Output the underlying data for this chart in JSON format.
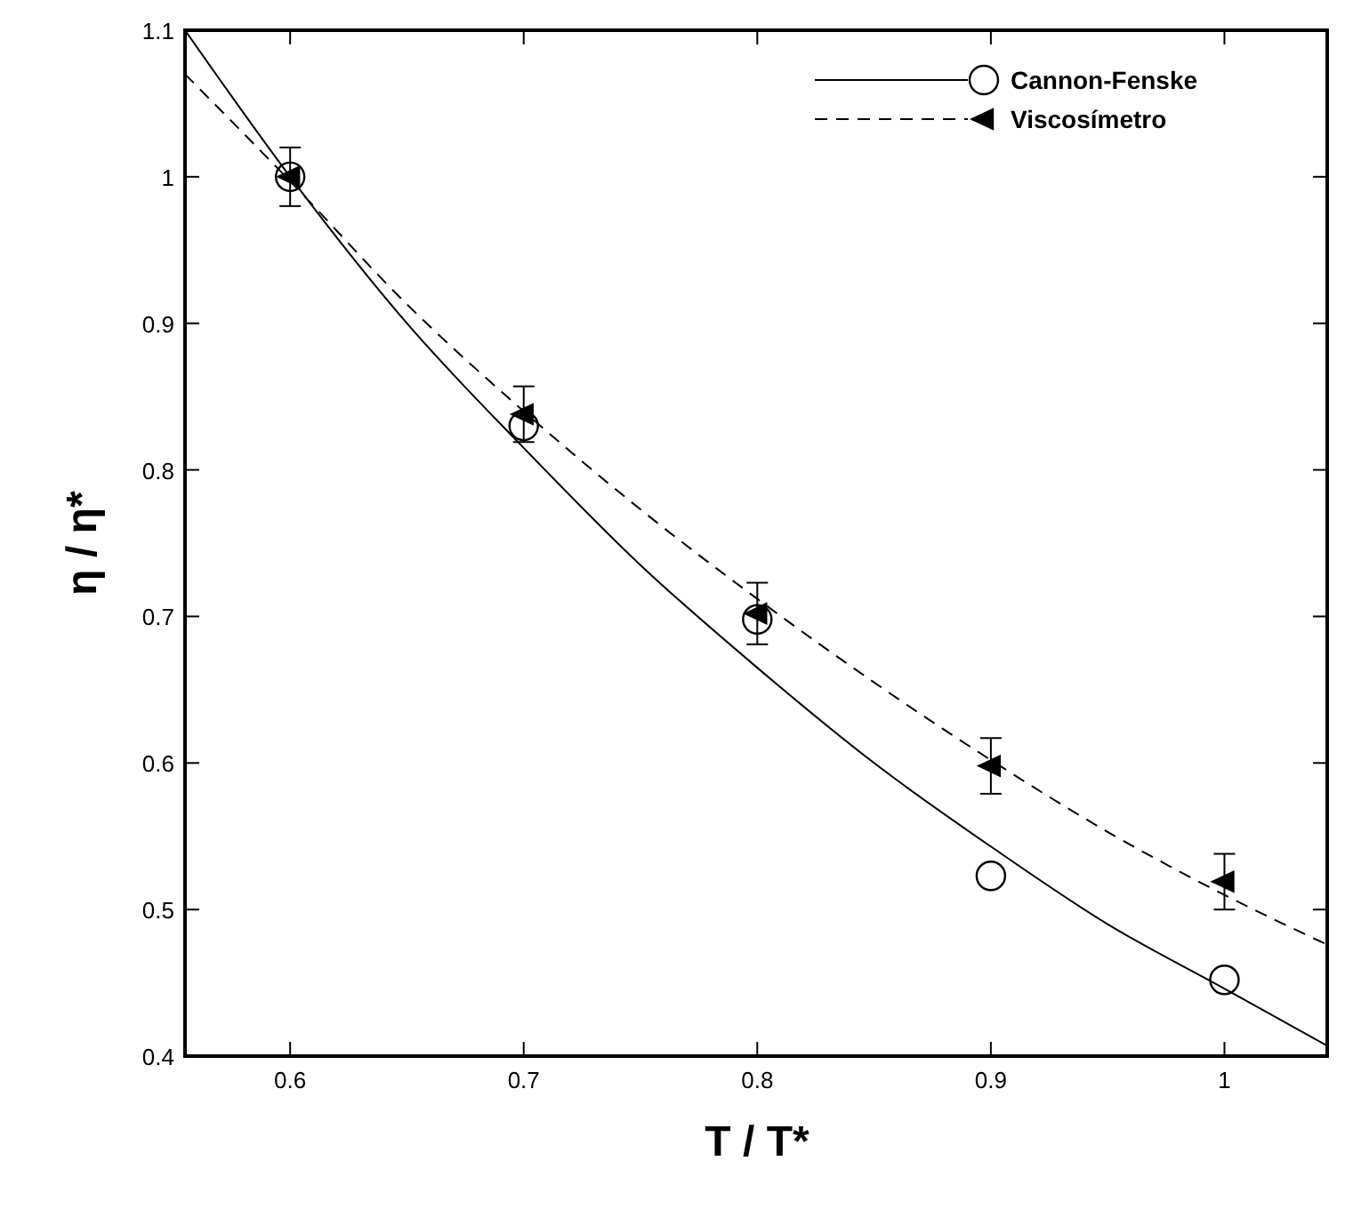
{
  "chart_data": {
    "type": "scatter",
    "xlabel": "T / T*",
    "ylabel": "η / η*",
    "xlim": [
      0.555,
      1.044
    ],
    "ylim": [
      0.4,
      1.1
    ],
    "xticks": [
      0.6,
      0.7,
      0.8,
      0.9,
      1
    ],
    "yticks": [
      0.4,
      0.5,
      0.6,
      0.7,
      0.8,
      0.9,
      1,
      1.1
    ],
    "legend": "top right",
    "grid": false,
    "series": [
      {
        "name": "Cannon-Fenske",
        "marker": "circle",
        "color": "#000000",
        "x": [
          0.6,
          0.7,
          0.8,
          0.9,
          1.0
        ],
        "values": [
          1.0,
          0.83,
          0.698,
          0.523,
          0.452
        ]
      },
      {
        "type": "line",
        "line_style": "solid",
        "color": "#000000",
        "x": [
          0.555,
          0.6,
          0.65,
          0.7,
          0.75,
          0.8,
          0.85,
          0.9,
          0.95,
          1.0,
          1.044
        ],
        "values": [
          1.1,
          1.0,
          0.9,
          0.815,
          0.735,
          0.665,
          0.6,
          0.543,
          0.49,
          0.446,
          0.407
        ]
      },
      {
        "name": "Viscosímetro",
        "marker": "triangle",
        "color": "#000000",
        "x": [
          0.6,
          0.7,
          0.8,
          0.9,
          1.0
        ],
        "values": [
          1.0,
          0.838,
          0.702,
          0.598,
          0.519
        ],
        "errors": [
          0.02,
          0.019,
          0.021,
          0.019,
          0.019
        ]
      },
      {
        "type": "line",
        "line_style": "dashed",
        "color": "#000000",
        "x": [
          0.555,
          0.6,
          0.65,
          0.7,
          0.75,
          0.8,
          0.85,
          0.9,
          0.95,
          1.0,
          1.044
        ],
        "values": [
          1.07,
          0.997,
          0.913,
          0.84,
          0.773,
          0.712,
          0.655,
          0.602,
          0.553,
          0.51,
          0.476
        ]
      }
    ]
  }
}
